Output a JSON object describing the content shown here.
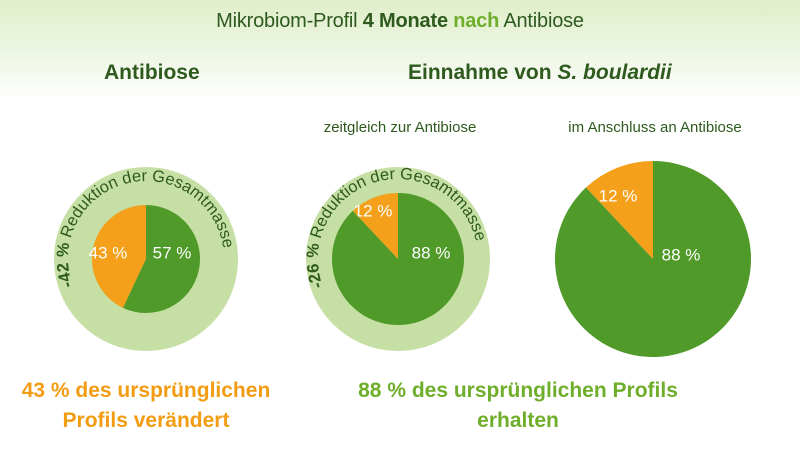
{
  "header": {
    "title_part1": "Mikrobiom-Profil ",
    "title_part2": "4 Monate ",
    "title_part3": "nach",
    "title_part4": " Antibiose",
    "left_heading": "Antibiose",
    "right_heading_part1": "Einnahme von ",
    "right_heading_part2": "S. boulardii"
  },
  "subtitles": {
    "middle": "zeitgleich zur Antibiose",
    "right": "im Anschluss an Antibiose"
  },
  "footer": {
    "left_line1": "43 % des ursprünglichen",
    "left_line2": "Profils verändert",
    "right": "88 % des ursprünglichen Profils erhalten"
  },
  "colors": {
    "green_dark": "#2e5a1e",
    "green_pie": "#4f9a28",
    "orange": "#f5a01a",
    "ring": "#c6dfa4",
    "footer_orange": "#f39c12",
    "footer_green": "#6fae2b"
  },
  "chart_data": [
    {
      "type": "pie",
      "group": "Antibiose",
      "slices": [
        {
          "label": "43 %",
          "value": 43,
          "color": "#f5a01a"
        },
        {
          "label": "57 %",
          "value": 57,
          "color": "#4f9a28"
        }
      ],
      "ring_label": "-42 % Reduktion der Gesamtmasse",
      "mass_reduction": -42
    },
    {
      "type": "pie",
      "group": "zeitgleich zur Antibiose",
      "slices": [
        {
          "label": "12 %",
          "value": 12,
          "color": "#f5a01a"
        },
        {
          "label": "88 %",
          "value": 88,
          "color": "#4f9a28"
        }
      ],
      "ring_label": "-26 % Reduktion der Gesamtmasse",
      "mass_reduction": -26
    },
    {
      "type": "pie",
      "group": "im Anschluss an Antibiose",
      "slices": [
        {
          "label": "12 %",
          "value": 12,
          "color": "#f5a01a"
        },
        {
          "label": "88 %",
          "value": 88,
          "color": "#4f9a28"
        }
      ]
    }
  ]
}
